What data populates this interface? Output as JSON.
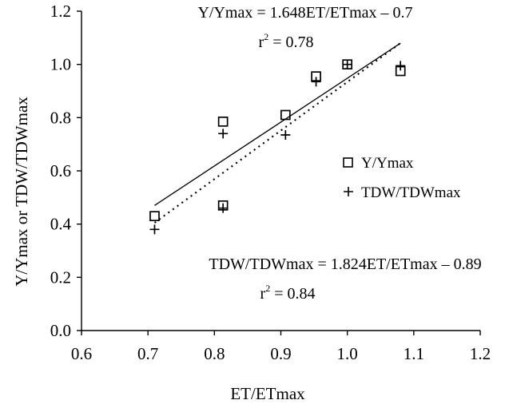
{
  "chart_data": {
    "type": "scatter",
    "title": "",
    "xlabel": "ET/ETmax",
    "ylabel": "Y/Ymax or TDW/TDWmax",
    "xlim": [
      0.6,
      1.2
    ],
    "ylim": [
      0.0,
      1.2
    ],
    "x_ticks": [
      "0.6",
      "0.7",
      "0.8",
      "0.9",
      "1.0",
      "1.1",
      "1.2"
    ],
    "y_ticks": [
      "0.0",
      "0.2",
      "0.4",
      "0.6",
      "0.8",
      "1.0",
      "1.2"
    ],
    "grid": false,
    "legend_position": "right",
    "series": [
      {
        "name": "Y/Ymax",
        "marker": "square",
        "x": [
          0.71,
          0.813,
          0.813,
          0.907,
          0.953,
          1.0,
          1.08
        ],
        "y": [
          0.43,
          0.47,
          0.785,
          0.81,
          0.955,
          1.0,
          0.975
        ]
      },
      {
        "name": "TDW/TDWmax",
        "marker": "plus",
        "x": [
          0.71,
          0.813,
          0.813,
          0.907,
          0.953,
          1.0,
          1.08
        ],
        "y": [
          0.38,
          0.46,
          0.74,
          0.735,
          0.935,
          1.0,
          0.995
        ]
      }
    ],
    "trendlines": [
      {
        "series": "Y/Ymax",
        "style": "solid",
        "slope": 1.648,
        "intercept": -0.7,
        "x_range": [
          0.71,
          1.08
        ],
        "equation": "Y/Ymax = 1.648ET/ETmax – 0.7",
        "r2_prefix": "r",
        "r2_sup": "2",
        "r2_value": " = 0.78"
      },
      {
        "series": "TDW/TDWmax",
        "style": "dotted",
        "slope": 1.824,
        "intercept": -0.89,
        "x_range": [
          0.71,
          1.08
        ],
        "equation": "TDW/TDWmax = 1.824ET/ETmax – 0.89",
        "r2_prefix": "r",
        "r2_sup": "2",
        "r2_value": " = 0.84"
      }
    ],
    "colors": {
      "axis": "#000000",
      "marker": "#000000",
      "line": "#000000"
    }
  }
}
